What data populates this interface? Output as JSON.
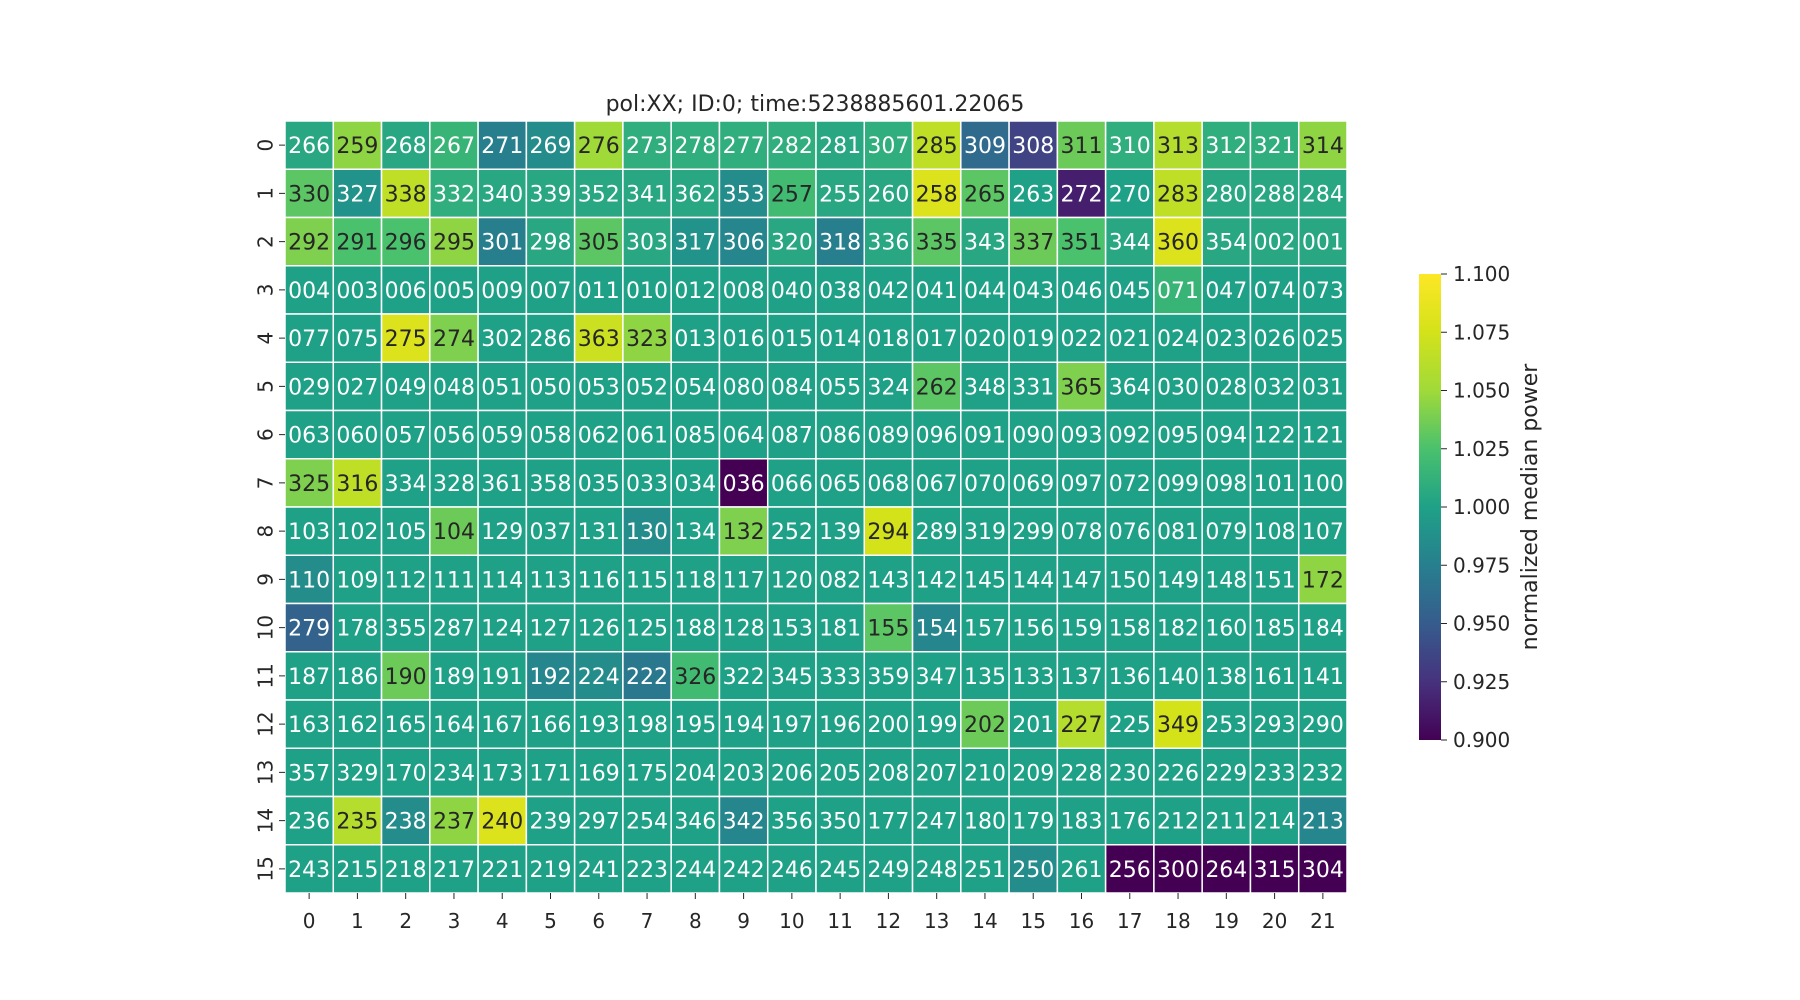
{
  "chart_data": {
    "type": "heatmap",
    "title": "pol:XX; ID:0; time:5238885601.22065",
    "xlabel": "",
    "ylabel": "",
    "x_ticks": [
      "0",
      "1",
      "2",
      "3",
      "4",
      "5",
      "6",
      "7",
      "8",
      "9",
      "10",
      "11",
      "12",
      "13",
      "14",
      "15",
      "16",
      "17",
      "18",
      "19",
      "20",
      "21"
    ],
    "y_ticks": [
      "0",
      "1",
      "2",
      "3",
      "4",
      "5",
      "6",
      "7",
      "8",
      "9",
      "10",
      "11",
      "12",
      "13",
      "14",
      "15"
    ],
    "colorbar": {
      "label": "normalized median power",
      "colormap": "viridis",
      "range": [
        0.9,
        1.1
      ],
      "ticks": [
        "0.900",
        "0.925",
        "0.950",
        "0.975",
        "1.000",
        "1.025",
        "1.050",
        "1.075",
        "1.100"
      ]
    },
    "cell_labels": [
      [
        "266",
        "259",
        "268",
        "267",
        "271",
        "269",
        "276",
        "273",
        "278",
        "277",
        "282",
        "281",
        "307",
        "285",
        "309",
        "308",
        "311",
        "310",
        "313",
        "312",
        "321",
        "314"
      ],
      [
        "330",
        "327",
        "338",
        "332",
        "340",
        "339",
        "352",
        "341",
        "362",
        "353",
        "257",
        "255",
        "260",
        "258",
        "265",
        "263",
        "272",
        "270",
        "283",
        "280",
        "288",
        "284"
      ],
      [
        "292",
        "291",
        "296",
        "295",
        "301",
        "298",
        "305",
        "303",
        "317",
        "306",
        "320",
        "318",
        "336",
        "335",
        "343",
        "337",
        "351",
        "344",
        "360",
        "354",
        "002",
        "001"
      ],
      [
        "004",
        "003",
        "006",
        "005",
        "009",
        "007",
        "011",
        "010",
        "012",
        "008",
        "040",
        "038",
        "042",
        "041",
        "044",
        "043",
        "046",
        "045",
        "071",
        "047",
        "074",
        "073"
      ],
      [
        "077",
        "075",
        "275",
        "274",
        "302",
        "286",
        "363",
        "323",
        "013",
        "016",
        "015",
        "014",
        "018",
        "017",
        "020",
        "019",
        "022",
        "021",
        "024",
        "023",
        "026",
        "025"
      ],
      [
        "029",
        "027",
        "049",
        "048",
        "051",
        "050",
        "053",
        "052",
        "054",
        "080",
        "084",
        "055",
        "324",
        "262",
        "348",
        "331",
        "365",
        "364",
        "030",
        "028",
        "032",
        "031"
      ],
      [
        "063",
        "060",
        "057",
        "056",
        "059",
        "058",
        "062",
        "061",
        "085",
        "064",
        "087",
        "086",
        "089",
        "096",
        "091",
        "090",
        "093",
        "092",
        "095",
        "094",
        "122",
        "121"
      ],
      [
        "325",
        "316",
        "334",
        "328",
        "361",
        "358",
        "035",
        "033",
        "034",
        "036",
        "066",
        "065",
        "068",
        "067",
        "070",
        "069",
        "097",
        "072",
        "099",
        "098",
        "101",
        "100"
      ],
      [
        "103",
        "102",
        "105",
        "104",
        "129",
        "037",
        "131",
        "130",
        "134",
        "132",
        "252",
        "139",
        "294",
        "289",
        "319",
        "299",
        "078",
        "076",
        "081",
        "079",
        "108",
        "107"
      ],
      [
        "110",
        "109",
        "112",
        "111",
        "114",
        "113",
        "116",
        "115",
        "118",
        "117",
        "120",
        "082",
        "143",
        "142",
        "145",
        "144",
        "147",
        "150",
        "149",
        "148",
        "151",
        "172"
      ],
      [
        "279",
        "178",
        "355",
        "287",
        "124",
        "127",
        "126",
        "125",
        "188",
        "128",
        "153",
        "181",
        "155",
        "154",
        "157",
        "156",
        "159",
        "158",
        "182",
        "160",
        "185",
        "184"
      ],
      [
        "187",
        "186",
        "190",
        "189",
        "191",
        "192",
        "224",
        "222",
        "326",
        "322",
        "345",
        "333",
        "359",
        "347",
        "135",
        "133",
        "137",
        "136",
        "140",
        "138",
        "161",
        "141"
      ],
      [
        "163",
        "162",
        "165",
        "164",
        "167",
        "166",
        "193",
        "198",
        "195",
        "194",
        "197",
        "196",
        "200",
        "199",
        "202",
        "201",
        "227",
        "225",
        "349",
        "253",
        "293",
        "290"
      ],
      [
        "357",
        "329",
        "170",
        "234",
        "173",
        "171",
        "169",
        "175",
        "204",
        "203",
        "206",
        "205",
        "208",
        "207",
        "210",
        "209",
        "228",
        "230",
        "226",
        "229",
        "233",
        "232"
      ],
      [
        "236",
        "235",
        "238",
        "237",
        "240",
        "239",
        "297",
        "254",
        "346",
        "342",
        "356",
        "350",
        "177",
        "247",
        "180",
        "179",
        "183",
        "176",
        "212",
        "211",
        "214",
        "213"
      ],
      [
        "243",
        "215",
        "218",
        "217",
        "221",
        "219",
        "241",
        "223",
        "244",
        "242",
        "246",
        "245",
        "249",
        "248",
        "251",
        "250",
        "261",
        "256",
        "300",
        "264",
        "315",
        "304"
      ]
    ],
    "values": [
      [
        1.005,
        1.045,
        1.005,
        1.015,
        0.975,
        0.985,
        1.05,
        1.01,
        1.01,
        1.01,
        1.01,
        1.005,
        1.01,
        1.065,
        0.96,
        0.935,
        1.035,
        1.01,
        1.06,
        1.01,
        1.01,
        1.045
      ],
      [
        1.03,
        0.99,
        1.065,
        1.01,
        1.005,
        1.005,
        1.005,
        1.005,
        1.005,
        0.985,
        1.02,
        1.005,
        1.005,
        1.08,
        1.03,
        1.0,
        0.915,
        1.0,
        1.065,
        1.005,
        1.005,
        1.005
      ],
      [
        1.04,
        1.025,
        1.025,
        1.045,
        0.975,
        1.005,
        1.03,
        1.005,
        0.99,
        0.98,
        1.005,
        0.975,
        1.005,
        1.03,
        1.005,
        1.035,
        1.025,
        1.005,
        1.08,
        1.005,
        1.005,
        1.005
      ],
      [
        1.0,
        1.0,
        1.0,
        1.0,
        1.0,
        1.0,
        1.0,
        1.0,
        1.0,
        1.0,
        1.0,
        1.0,
        1.0,
        1.0,
        1.0,
        1.0,
        1.0,
        1.0,
        1.015,
        1.0,
        1.0,
        1.0
      ],
      [
        1.0,
        1.0,
        1.08,
        1.04,
        1.0,
        1.0,
        1.07,
        1.045,
        1.0,
        1.0,
        1.0,
        1.0,
        1.0,
        1.0,
        1.0,
        1.0,
        1.0,
        1.0,
        1.0,
        1.0,
        1.0,
        1.0
      ],
      [
        1.0,
        1.0,
        1.0,
        1.0,
        1.0,
        1.0,
        1.0,
        1.0,
        1.0,
        1.0,
        1.0,
        1.0,
        1.0,
        1.03,
        1.0,
        1.0,
        1.04,
        1.0,
        1.0,
        1.0,
        1.0,
        1.0
      ],
      [
        1.0,
        1.0,
        1.0,
        1.0,
        1.0,
        1.0,
        1.0,
        1.0,
        1.0,
        1.0,
        1.0,
        1.0,
        1.0,
        1.0,
        1.0,
        1.0,
        1.0,
        1.0,
        1.0,
        1.0,
        1.0,
        1.0
      ],
      [
        1.04,
        1.065,
        1.0,
        1.0,
        1.0,
        1.0,
        1.0,
        1.0,
        1.0,
        0.9,
        1.0,
        1.0,
        1.0,
        1.0,
        1.0,
        1.0,
        1.0,
        1.0,
        1.0,
        1.0,
        1.0,
        1.0
      ],
      [
        1.0,
        1.0,
        1.0,
        1.035,
        1.0,
        1.0,
        1.0,
        0.985,
        1.0,
        1.04,
        1.0,
        1.0,
        1.075,
        1.0,
        1.0,
        1.0,
        1.0,
        1.0,
        1.0,
        1.0,
        1.0,
        1.0
      ],
      [
        0.985,
        1.0,
        1.0,
        1.0,
        1.0,
        1.0,
        1.0,
        1.0,
        1.0,
        1.0,
        1.0,
        1.0,
        1.0,
        1.0,
        1.0,
        1.0,
        1.0,
        1.0,
        1.0,
        1.0,
        1.0,
        1.045
      ],
      [
        0.955,
        1.0,
        1.0,
        1.0,
        1.0,
        1.0,
        1.0,
        1.0,
        1.0,
        1.0,
        1.0,
        1.0,
        1.03,
        0.98,
        1.0,
        1.0,
        1.0,
        1.0,
        1.0,
        1.0,
        1.0,
        1.0
      ],
      [
        1.0,
        1.0,
        1.035,
        1.0,
        1.0,
        0.98,
        0.985,
        0.97,
        1.02,
        1.0,
        1.0,
        1.0,
        1.0,
        1.0,
        1.0,
        1.0,
        1.0,
        1.0,
        1.0,
        1.0,
        1.0,
        1.0
      ],
      [
        1.0,
        1.0,
        1.0,
        1.0,
        1.0,
        1.0,
        1.0,
        1.0,
        1.0,
        1.0,
        1.0,
        1.0,
        1.0,
        1.0,
        1.035,
        1.0,
        1.06,
        1.0,
        1.075,
        1.0,
        1.0,
        1.0
      ],
      [
        1.0,
        1.0,
        1.0,
        1.0,
        1.0,
        1.0,
        1.0,
        1.0,
        1.0,
        1.0,
        1.0,
        1.0,
        1.0,
        1.0,
        1.0,
        1.0,
        1.0,
        1.0,
        1.0,
        1.0,
        1.0,
        1.0
      ],
      [
        1.0,
        1.06,
        0.985,
        1.045,
        1.08,
        1.0,
        1.0,
        1.0,
        1.0,
        0.98,
        1.0,
        1.0,
        1.0,
        1.0,
        1.0,
        1.0,
        1.0,
        1.0,
        1.0,
        1.0,
        1.0,
        0.98
      ],
      [
        1.0,
        1.0,
        1.0,
        1.0,
        1.0,
        1.0,
        1.0,
        1.0,
        1.0,
        1.0,
        1.0,
        1.0,
        1.0,
        1.0,
        1.0,
        0.985,
        1.0,
        0.9,
        0.9,
        0.9,
        0.9,
        0.9
      ]
    ]
  }
}
